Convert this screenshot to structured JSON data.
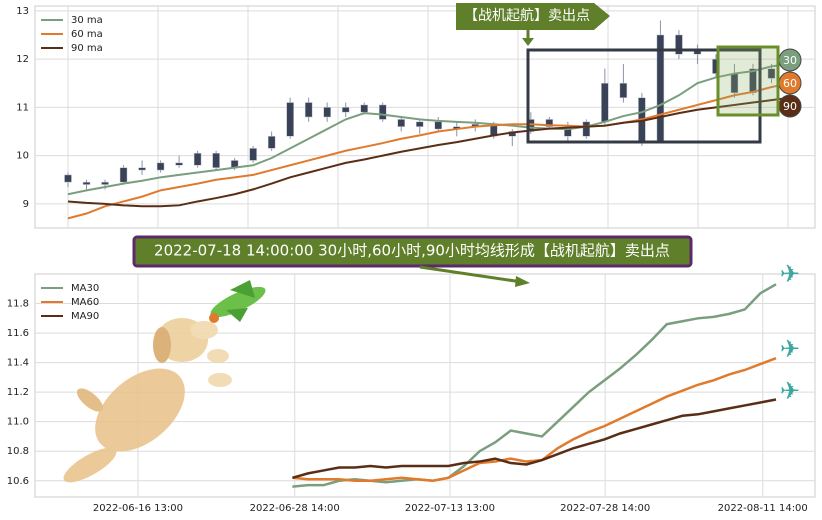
{
  "chart_data": [
    {
      "type": "candlestick",
      "annotation": "【战机起航】卖出点",
      "candle_color": "#3a4257",
      "ylim": [
        8.5,
        13.1
      ],
      "yticks": [
        9,
        10,
        11,
        12,
        13
      ],
      "grid": true,
      "legend": "upper left",
      "ohlc": [
        [
          9.6,
          9.65,
          9.35,
          9.45
        ],
        [
          9.45,
          9.5,
          9.3,
          9.4
        ],
        [
          9.4,
          9.5,
          9.3,
          9.45
        ],
        [
          9.45,
          9.8,
          9.4,
          9.75
        ],
        [
          9.75,
          9.9,
          9.6,
          9.7
        ],
        [
          9.7,
          9.9,
          9.65,
          9.85
        ],
        [
          9.85,
          10.0,
          9.75,
          9.8
        ],
        [
          9.8,
          10.1,
          9.75,
          10.05
        ],
        [
          10.05,
          10.1,
          9.7,
          9.75
        ],
        [
          9.75,
          9.95,
          9.7,
          9.9
        ],
        [
          9.9,
          10.2,
          9.85,
          10.15
        ],
        [
          10.15,
          10.5,
          10.1,
          10.4
        ],
        [
          10.4,
          11.2,
          10.35,
          11.1
        ],
        [
          11.1,
          11.2,
          10.7,
          10.8
        ],
        [
          10.8,
          11.1,
          10.7,
          11.0
        ],
        [
          11.0,
          11.1,
          10.8,
          10.9
        ],
        [
          10.9,
          11.1,
          10.85,
          11.05
        ],
        [
          11.05,
          11.1,
          10.7,
          10.75
        ],
        [
          10.75,
          10.8,
          10.5,
          10.6
        ],
        [
          10.6,
          10.75,
          10.45,
          10.7
        ],
        [
          10.7,
          10.8,
          10.5,
          10.55
        ],
        [
          10.55,
          10.7,
          10.4,
          10.6
        ],
        [
          10.6,
          10.75,
          10.5,
          10.65
        ],
        [
          10.65,
          10.7,
          10.35,
          10.4
        ],
        [
          10.4,
          10.55,
          10.2,
          10.5
        ],
        [
          10.5,
          10.9,
          10.45,
          10.75
        ],
        [
          10.75,
          10.8,
          10.55,
          10.6
        ],
        [
          10.6,
          10.7,
          10.3,
          10.4
        ],
        [
          10.4,
          10.75,
          10.35,
          10.7
        ],
        [
          10.7,
          11.8,
          10.6,
          11.5
        ],
        [
          11.5,
          11.9,
          11.1,
          11.2
        ],
        [
          11.2,
          11.3,
          10.2,
          10.3
        ],
        [
          10.3,
          12.8,
          10.3,
          12.5
        ],
        [
          12.5,
          12.6,
          12.0,
          12.1
        ],
        [
          12.1,
          12.3,
          11.9,
          12.2
        ],
        [
          12.0,
          12.1,
          11.6,
          11.7
        ],
        [
          11.7,
          11.9,
          11.2,
          11.3
        ],
        [
          11.3,
          11.9,
          11.25,
          11.8
        ],
        [
          11.8,
          11.9,
          11.5,
          11.6
        ],
        [
          11.6,
          11.7,
          11.1,
          11.3
        ]
      ],
      "series": [
        {
          "name": "30 ma",
          "end_label": "30",
          "color": "#7a9e7e",
          "values": [
            9.2,
            9.28,
            9.35,
            9.42,
            9.48,
            9.55,
            9.6,
            9.65,
            9.7,
            9.75,
            9.8,
            9.95,
            10.15,
            10.35,
            10.55,
            10.75,
            10.88,
            10.85,
            10.8,
            10.75,
            10.72,
            10.7,
            10.68,
            10.65,
            10.62,
            10.58,
            10.56,
            10.55,
            10.6,
            10.7,
            10.82,
            10.9,
            11.05,
            11.25,
            11.5,
            11.62,
            11.7,
            11.75,
            11.85,
            11.9
          ]
        },
        {
          "name": "60 ma",
          "end_label": "60",
          "color": "#e07b2e",
          "values": [
            8.7,
            8.8,
            8.95,
            9.05,
            9.15,
            9.28,
            9.35,
            9.42,
            9.5,
            9.55,
            9.6,
            9.7,
            9.8,
            9.9,
            10.0,
            10.1,
            10.18,
            10.26,
            10.35,
            10.42,
            10.5,
            10.55,
            10.6,
            10.63,
            10.65,
            10.65,
            10.63,
            10.62,
            10.6,
            10.62,
            10.68,
            10.75,
            10.85,
            10.95,
            11.05,
            11.15,
            11.25,
            11.32,
            11.42,
            11.5
          ]
        },
        {
          "name": "90 ma",
          "end_label": "90",
          "color": "#5a2e16",
          "values": [
            9.05,
            9.02,
            9.0,
            8.97,
            8.95,
            8.95,
            8.97,
            9.05,
            9.12,
            9.2,
            9.3,
            9.42,
            9.55,
            9.65,
            9.75,
            9.85,
            9.92,
            10.0,
            10.08,
            10.15,
            10.22,
            10.28,
            10.35,
            10.42,
            10.48,
            10.52,
            10.56,
            10.58,
            10.6,
            10.62,
            10.68,
            10.72,
            10.8,
            10.88,
            10.95,
            11.0,
            11.05,
            11.1,
            11.15,
            11.2
          ]
        }
      ]
    },
    {
      "type": "line",
      "annotation": "2022-07-18 14:00:00 30小时,60小时,90小时均线形成【战机起航】卖出点",
      "xlim": [
        0,
        100
      ],
      "xticks": [
        {
          "value": 13.2,
          "label": "2022-06-16 13:00"
        },
        {
          "value": 33.3,
          "label": "2022-06-28 14:00"
        },
        {
          "value": 53.2,
          "label": "2022-07-13 13:00"
        },
        {
          "value": 73.1,
          "label": "2022-07-28 14:00"
        },
        {
          "value": 93.3,
          "label": "2022-08-11 14:00"
        }
      ],
      "ylim": [
        10.49,
        12.0
      ],
      "yticks": [
        10.6,
        10.8,
        {
          "value": 11,
          "label": "11.0"
        },
        11.2,
        11.4,
        11.6,
        11.8
      ],
      "grid": true,
      "legend": "upper left",
      "x": [
        33,
        35,
        37,
        39,
        41,
        43,
        45,
        47,
        49,
        51,
        53,
        55,
        57,
        59,
        61,
        63,
        65,
        67,
        69,
        71,
        73,
        75,
        77,
        79,
        81,
        83,
        85,
        87,
        89,
        91,
        93,
        95
      ],
      "series": [
        {
          "name": "MA30",
          "color": "#7a9e7e",
          "values": [
            10.56,
            10.57,
            10.57,
            10.6,
            10.61,
            10.6,
            10.59,
            10.6,
            10.61,
            10.6,
            10.62,
            10.7,
            10.8,
            10.86,
            10.94,
            10.92,
            10.9,
            11.0,
            11.1,
            11.2,
            11.28,
            11.36,
            11.45,
            11.55,
            11.66,
            11.68,
            11.7,
            11.71,
            11.73,
            11.76,
            11.87,
            11.93
          ]
        },
        {
          "name": "MA60",
          "color": "#e07b2e",
          "values": [
            10.62,
            10.61,
            10.61,
            10.61,
            10.6,
            10.6,
            10.61,
            10.62,
            10.61,
            10.6,
            10.62,
            10.67,
            10.72,
            10.73,
            10.75,
            10.73,
            10.74,
            10.82,
            10.88,
            10.93,
            10.97,
            11.02,
            11.07,
            11.12,
            11.17,
            11.21,
            11.25,
            11.28,
            11.32,
            11.35,
            11.39,
            11.43
          ]
        },
        {
          "name": "MA90",
          "color": "#5a2e16",
          "values": [
            10.62,
            10.65,
            10.67,
            10.69,
            10.69,
            10.7,
            10.69,
            10.7,
            10.7,
            10.7,
            10.7,
            10.72,
            10.73,
            10.75,
            10.72,
            10.71,
            10.74,
            10.78,
            10.82,
            10.85,
            10.88,
            10.92,
            10.95,
            10.98,
            11.01,
            11.04,
            11.05,
            11.07,
            11.09,
            11.11,
            11.13,
            11.15
          ]
        }
      ]
    }
  ]
}
